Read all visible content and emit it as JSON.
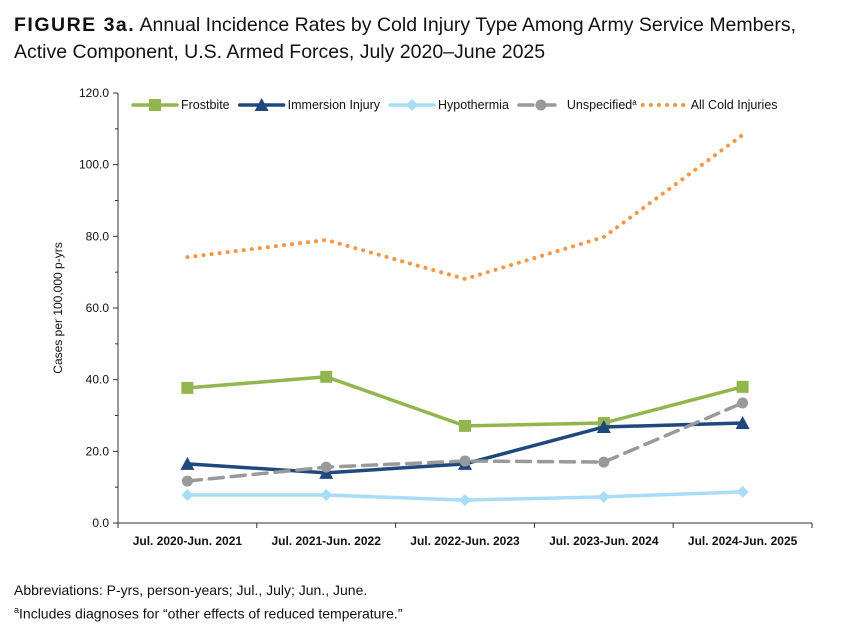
{
  "title": {
    "label": "FIGURE 3a.",
    "text": "Annual Incidence Rates by Cold Injury Type Among Army Service Members, Active Component, U.S. Armed Forces, July 2020–June 2025"
  },
  "notes": {
    "abbrev": "Abbreviations: P-yrs, person-years; Jul., July; Jun., June.",
    "footnote_mark": "a",
    "footnote": "Includes diagnoses for “other effects of reduced temperature.”"
  },
  "chart_data": {
    "type": "line",
    "ylabel": "Cases per 100,000 p-yrs",
    "xlabel": "",
    "ylim": [
      0,
      120
    ],
    "yticks": [
      "0.0",
      "20.0",
      "40.0",
      "60.0",
      "80.0",
      "100.0",
      "120.0"
    ],
    "grid": false,
    "legend": "top",
    "categories": [
      "Jul. 2020-Jun. 2021",
      "Jul. 2021-Jun. 2022",
      "Jul. 2022-Jun. 2023",
      "Jul. 2023-Jun. 2024",
      "Jul. 2024-Jun. 2025"
    ],
    "series": [
      {
        "name": "Frostbite",
        "color": "#92b64e",
        "marker": "square",
        "dash": "solid",
        "values": [
          37.7,
          40.8,
          27.1,
          27.9,
          38.0
        ]
      },
      {
        "name": "Immersion Injury",
        "color": "#1f497d",
        "marker": "triangle",
        "dash": "solid",
        "values": [
          16.5,
          14.0,
          16.5,
          26.8,
          27.9
        ]
      },
      {
        "name": "Hypothermia",
        "color": "#a9dcf7",
        "marker": "diamond",
        "dash": "solid",
        "values": [
          7.8,
          7.8,
          6.4,
          7.3,
          8.7
        ]
      },
      {
        "name": "Unspecified",
        "sup": "a",
        "color": "#999999",
        "marker": "circle",
        "dash": "dash",
        "values": [
          11.7,
          15.6,
          17.3,
          17.0,
          33.5
        ]
      },
      {
        "name": "All Cold Injuries",
        "color": "#f79646",
        "marker": "none",
        "dash": "dot",
        "values": [
          74.2,
          79.0,
          68.1,
          79.8,
          108.3
        ]
      }
    ]
  }
}
